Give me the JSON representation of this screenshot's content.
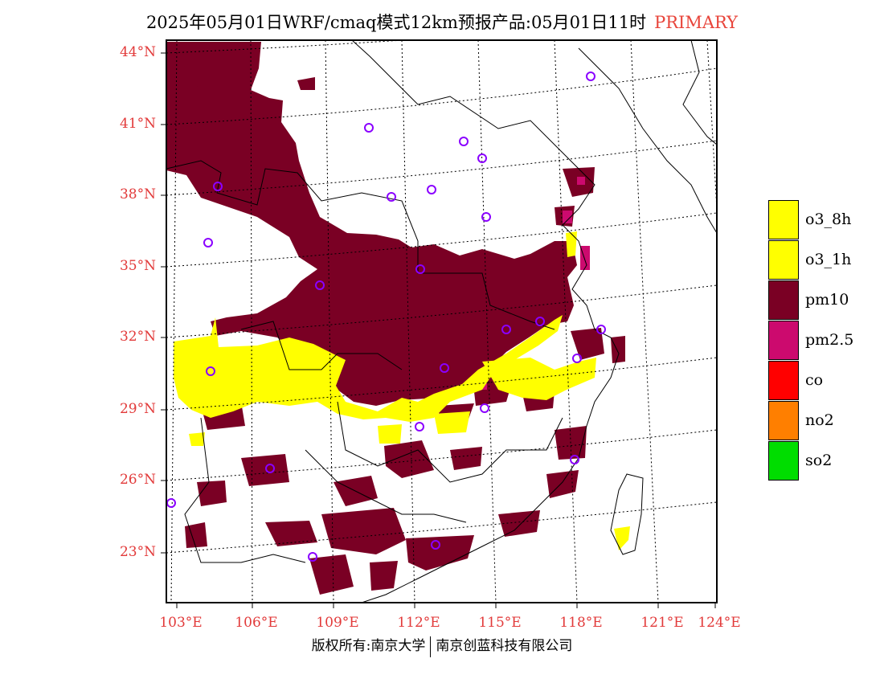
{
  "title": {
    "main": "2025年05月01日WRF/cmaq模式12km预报产品:05月01日11时",
    "tag": "PRIMARY"
  },
  "lat_labels": [
    "44°N",
    "41°N",
    "38°N",
    "35°N",
    "32°N",
    "29°N",
    "26°N",
    "23°N"
  ],
  "lon_labels": [
    "103°E",
    "106°E",
    "109°E",
    "112°E",
    "115°E",
    "118°E",
    "121°E",
    "124°E"
  ],
  "legend": [
    {
      "label": "o3_8h",
      "color": "#ffff00"
    },
    {
      "label": "o3_1h",
      "color": "#ffff00"
    },
    {
      "label": "pm10",
      "color": "#7a0024"
    },
    {
      "label": "pm2.5",
      "color": "#cc0a6e"
    },
    {
      "label": "co",
      "color": "#ff0000"
    },
    {
      "label": "no2",
      "color": "#ff7f00"
    },
    {
      "label": "so2",
      "color": "#00dd00"
    }
  ],
  "footer": {
    "left": "版权所有:南京大学",
    "right": "南京创蓝科技有限公司"
  }
}
